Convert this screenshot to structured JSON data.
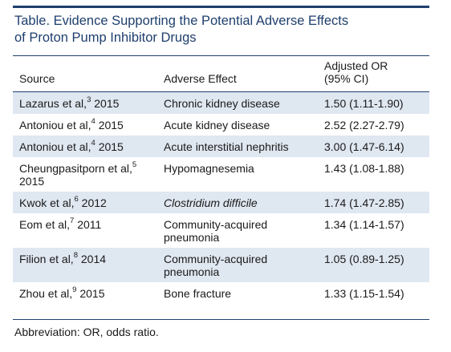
{
  "table": {
    "title_line1": "Table. Evidence Supporting the Potential Adverse Effects",
    "title_line2": "of Proton Pump Inhibitor Drugs",
    "headers": {
      "source": "Source",
      "effect": "Adverse Effect",
      "or_line1": "Adjusted OR",
      "or_line2": "(95% CI)"
    },
    "rows": [
      {
        "author": "Lazarus et al,",
        "ref": "3",
        "year": "2015",
        "effect": "Chronic kidney disease",
        "or": "1.50 (1.11-1.90)"
      },
      {
        "author": "Antoniou et al,",
        "ref": "4",
        "year": "2015",
        "effect": "Acute kidney disease",
        "or": "2.52 (2.27-2.79)"
      },
      {
        "author": "Antoniou et al,",
        "ref": "4",
        "year": "2015",
        "effect": "Acute interstitial nephritis",
        "or": "3.00 (1.47-6.14)"
      },
      {
        "author": "Cheungpasitporn et al,",
        "ref": "5",
        "year": "2015",
        "effect": "Hypomagnesemia",
        "or": "1.43 (1.08-1.88)"
      },
      {
        "author": "Kwok et al,",
        "ref": "6",
        "year": "2012",
        "effect": "Clostridium difficile",
        "or": "1.74 (1.47-2.85)"
      },
      {
        "author": "Eom et al,",
        "ref": "7",
        "year": "2011",
        "effect_line1": "Community-acquired",
        "effect_line2": "pneumonia",
        "or": "1.34 (1.14-1.57)"
      },
      {
        "author": "Filion et al,",
        "ref": "8",
        "year": "2014",
        "effect_line1": "Community-acquired",
        "effect_line2": "pneumonia",
        "or": "1.05 (0.89-1.25)"
      },
      {
        "author": "Zhou et al,",
        "ref": "9",
        "year": "2015",
        "effect": "Bone fracture",
        "or": "1.33 (1.15-1.54)"
      }
    ],
    "footnote": "Abbreviation: OR, odds ratio."
  },
  "colors": {
    "rule": "#1f3f6e",
    "title": "#1f3f6e",
    "row_shade": "#dfe7f1"
  }
}
